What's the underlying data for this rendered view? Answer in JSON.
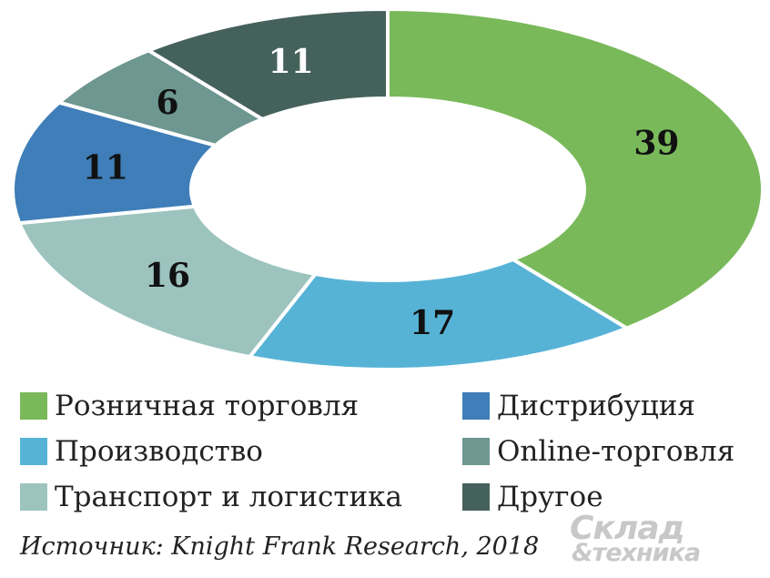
{
  "chart_data": {
    "type": "pie",
    "donut": true,
    "start_angle": "top (12 o'clock)",
    "direction": "clockwise",
    "categories": [
      "Розничная торговля",
      "Производство",
      "Транспорт и логистика",
      "Дистрибуция",
      "Online-торговля",
      "Другое"
    ],
    "values": [
      39,
      17,
      16,
      11,
      6,
      11
    ],
    "colors": [
      "#79b95a",
      "#57b3d6",
      "#9dc3bf",
      "#3f7eb8",
      "#6d9790",
      "#45615b"
    ],
    "label_colors": [
      "#111111",
      "#111111",
      "#111111",
      "#111111",
      "#111111",
      "#ffffff"
    ],
    "legend_placement": "bottom, two columns",
    "legend": [
      {
        "label": "Розничная торговля",
        "color": "#79b95a"
      },
      {
        "label": "Дистрибуция",
        "color": "#3f7eb8"
      },
      {
        "label": "Производство",
        "color": "#57b3d6"
      },
      {
        "label": "Online-торговля",
        "color": "#6d9790"
      },
      {
        "label": "Транспорт и логистика",
        "color": "#9dc3bf"
      },
      {
        "label": "Другое",
        "color": "#45615b"
      }
    ]
  },
  "source": "Источник: Knight Frank Research, 2018",
  "logo": {
    "line1": "Склад",
    "line2": "&техника"
  }
}
